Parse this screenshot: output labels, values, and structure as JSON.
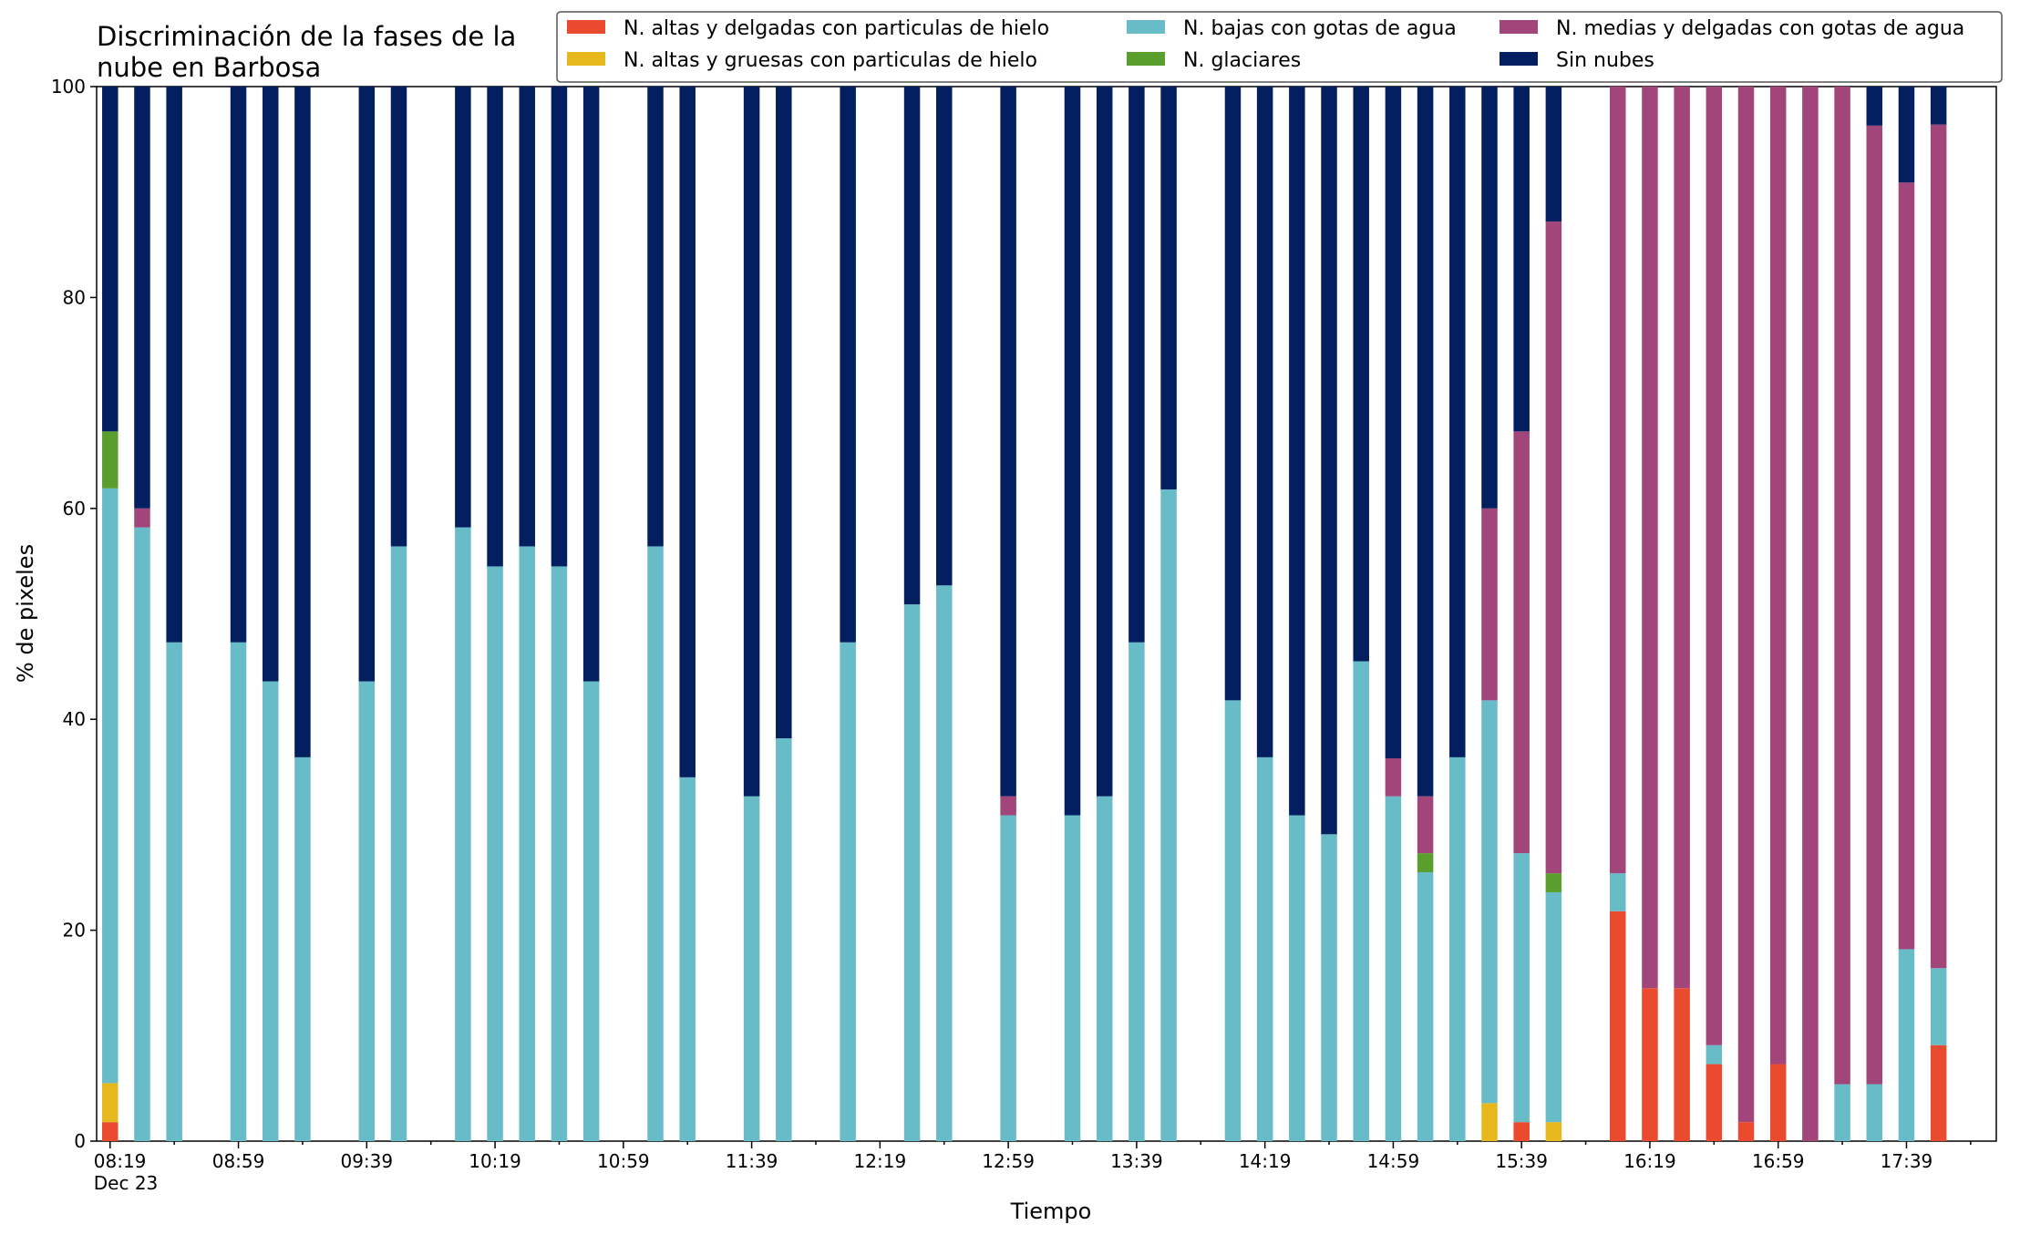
{
  "chart_data": {
    "type": "bar",
    "stacked": true,
    "title": "Discriminación de la fases de la\nnube en Barbosa",
    "xlabel": "Tiempo",
    "ylabel": "% de pixeles",
    "ylim": [
      0,
      100
    ],
    "yticks": [
      0,
      20,
      40,
      60,
      80,
      100
    ],
    "x_start_minutes": 499,
    "x_step_minutes": 10,
    "x_end_minutes": 1087,
    "x_tick_labels": [
      "08:19\nDec 23",
      "08:59",
      "09:39",
      "10:19",
      "10:59",
      "11:39",
      "12:19",
      "12:59",
      "13:39",
      "14:19",
      "14:59",
      "15:39",
      "16:19",
      "16:59",
      "17:39"
    ],
    "legend_position": "top-right",
    "grid": false,
    "series": [
      {
        "name": "N. altas y delgadas con particulas de hielo",
        "color": "#EA4A2D"
      },
      {
        "name": "N. altas y gruesas con particulas de hielo",
        "color": "#E6B81E"
      },
      {
        "name": "N. bajas con gotas de agua",
        "color": "#67BCC8"
      },
      {
        "name": "N. glaciares",
        "color": "#5A9E2E"
      },
      {
        "name": "N. medias y delgadas con gotas de agua",
        "color": "#A2457A"
      },
      {
        "name": "Sin nubes",
        "color": "#031F60"
      }
    ],
    "bars": [
      {
        "i": 0,
        "values": [
          1.8,
          3.7,
          56.4,
          5.4,
          0,
          32.7
        ]
      },
      {
        "i": 1,
        "values": [
          0,
          0,
          58.2,
          0,
          1.8,
          40.0
        ]
      },
      {
        "i": 2,
        "values": [
          0,
          0,
          47.3,
          0,
          0,
          52.7
        ]
      },
      {
        "i": 4,
        "values": [
          0,
          0,
          47.3,
          0,
          0,
          52.7
        ]
      },
      {
        "i": 5,
        "values": [
          0,
          0,
          43.6,
          0,
          0,
          56.4
        ]
      },
      {
        "i": 6,
        "values": [
          0,
          0,
          36.4,
          0,
          0,
          63.6
        ]
      },
      {
        "i": 8,
        "values": [
          0,
          0,
          43.6,
          0,
          0,
          56.4
        ]
      },
      {
        "i": 9,
        "values": [
          0,
          0,
          56.4,
          0,
          0,
          43.6
        ]
      },
      {
        "i": 11,
        "values": [
          0,
          0,
          58.2,
          0,
          0,
          41.8
        ]
      },
      {
        "i": 12,
        "values": [
          0,
          0,
          54.5,
          0,
          0,
          45.5
        ]
      },
      {
        "i": 13,
        "values": [
          0,
          0,
          56.4,
          0,
          0,
          43.6
        ]
      },
      {
        "i": 14,
        "values": [
          0,
          0,
          54.5,
          0,
          0,
          45.5
        ]
      },
      {
        "i": 15,
        "values": [
          0,
          0,
          43.6,
          0,
          0,
          56.4
        ]
      },
      {
        "i": 17,
        "values": [
          0,
          0,
          56.4,
          0,
          0,
          43.6
        ]
      },
      {
        "i": 18,
        "values": [
          0,
          0,
          34.5,
          0,
          0,
          65.5
        ]
      },
      {
        "i": 20,
        "values": [
          0,
          0,
          32.7,
          0,
          0,
          67.3
        ]
      },
      {
        "i": 21,
        "values": [
          0,
          0,
          38.2,
          0,
          0,
          61.8
        ]
      },
      {
        "i": 23,
        "values": [
          0,
          0,
          47.3,
          0,
          0,
          52.7
        ]
      },
      {
        "i": 25,
        "values": [
          0,
          0,
          50.9,
          0,
          0,
          49.1
        ]
      },
      {
        "i": 26,
        "values": [
          0,
          0,
          52.7,
          0,
          0,
          47.3
        ]
      },
      {
        "i": 28,
        "values": [
          0,
          0,
          30.9,
          0,
          1.8,
          67.3
        ]
      },
      {
        "i": 30,
        "values": [
          0,
          0,
          30.9,
          0,
          0,
          69.1
        ]
      },
      {
        "i": 31,
        "values": [
          0,
          0,
          32.7,
          0,
          0,
          67.3
        ]
      },
      {
        "i": 32,
        "values": [
          0,
          0,
          47.3,
          0,
          0,
          52.7
        ]
      },
      {
        "i": 33,
        "values": [
          0,
          0,
          61.8,
          0,
          0,
          38.2
        ]
      },
      {
        "i": 35,
        "values": [
          0,
          0,
          41.8,
          0,
          0,
          58.2
        ]
      },
      {
        "i": 36,
        "values": [
          0,
          0,
          36.4,
          0,
          0,
          63.6
        ]
      },
      {
        "i": 37,
        "values": [
          0,
          0,
          30.9,
          0,
          0,
          69.1
        ]
      },
      {
        "i": 38,
        "values": [
          0,
          0,
          29.1,
          0,
          0,
          70.9
        ]
      },
      {
        "i": 39,
        "values": [
          0,
          0,
          45.5,
          0,
          0,
          54.5
        ]
      },
      {
        "i": 40,
        "values": [
          0,
          0,
          32.7,
          0,
          3.6,
          63.7
        ]
      },
      {
        "i": 41,
        "values": [
          0,
          0,
          25.5,
          1.8,
          5.4,
          67.3
        ]
      },
      {
        "i": 42,
        "values": [
          0,
          0,
          36.4,
          0,
          0,
          63.6
        ]
      },
      {
        "i": 43,
        "values": [
          0,
          3.6,
          38.2,
          0,
          18.2,
          40.0
        ]
      },
      {
        "i": 44,
        "values": [
          1.8,
          0,
          25.5,
          0,
          40.0,
          32.7
        ]
      },
      {
        "i": 45,
        "values": [
          0,
          1.8,
          21.8,
          1.8,
          61.8,
          12.8
        ]
      },
      {
        "i": 47,
        "values": [
          21.8,
          0,
          3.6,
          0,
          74.6,
          0
        ]
      },
      {
        "i": 48,
        "values": [
          14.5,
          0,
          0,
          0,
          85.5,
          0
        ]
      },
      {
        "i": 49,
        "values": [
          14.5,
          0,
          0,
          0,
          85.5,
          0
        ]
      },
      {
        "i": 50,
        "values": [
          7.3,
          0,
          1.8,
          0,
          90.9,
          0
        ]
      },
      {
        "i": 51,
        "values": [
          1.8,
          0,
          0,
          0,
          98.2,
          0
        ]
      },
      {
        "i": 52,
        "values": [
          7.3,
          0,
          0,
          0,
          92.7,
          0
        ]
      },
      {
        "i": 53,
        "values": [
          0,
          0,
          0,
          0,
          100.0,
          0
        ]
      },
      {
        "i": 54,
        "values": [
          0,
          0,
          5.4,
          0,
          94.6,
          0
        ]
      },
      {
        "i": 55,
        "values": [
          0,
          0,
          5.4,
          0,
          90.9,
          3.7
        ]
      },
      {
        "i": 56,
        "values": [
          0,
          0,
          18.2,
          0,
          72.7,
          9.1
        ]
      },
      {
        "i": 57,
        "values": [
          9.1,
          0,
          7.3,
          0,
          80.0,
          3.6
        ]
      }
    ]
  }
}
